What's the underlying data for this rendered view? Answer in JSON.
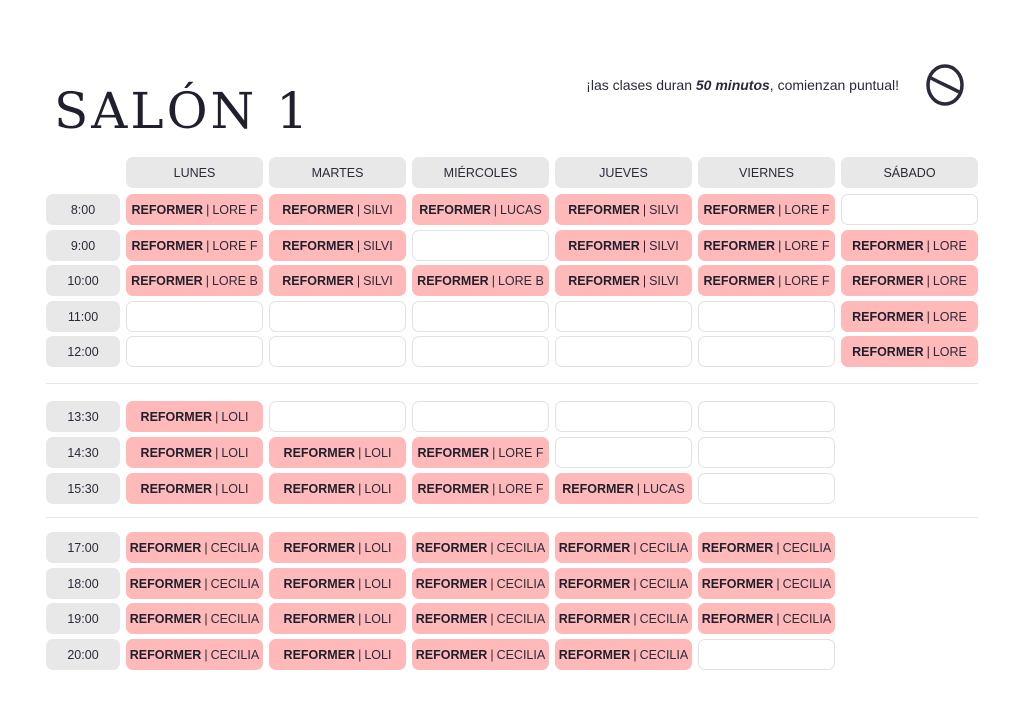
{
  "header": {
    "title": "SALÓN 1",
    "subtitle_pre": "¡las clases duran ",
    "subtitle_bold": "50 minutos",
    "subtitle_post": ", comienzan puntual!",
    "logo_icon": "brand-logo-icon"
  },
  "colors": {
    "class_bg": "#ffb9b9",
    "header_bg": "#e8e8e8",
    "empty_border": "#e2e2e2"
  },
  "days": [
    "LUNES",
    "MARTES",
    "MIÉRCOLES",
    "JUEVES",
    "VIERNES",
    "SÁBADO"
  ],
  "blocks": [
    {
      "rows": [
        {
          "time": "8:00",
          "cells": [
            "REFORMER | LORE F",
            "REFORMER | SILVI",
            "REFORMER | LUCAS",
            "REFORMER | SILVI",
            "REFORMER | LORE F",
            ""
          ]
        },
        {
          "time": "9:00",
          "cells": [
            "REFORMER | LORE F",
            "REFORMER | SILVI",
            "",
            "REFORMER | SILVI",
            "REFORMER | LORE F",
            "REFORMER | LORE"
          ]
        },
        {
          "time": "10:00",
          "cells": [
            "REFORMER | LORE B",
            "REFORMER | SILVI",
            "REFORMER | LORE B",
            "REFORMER | SILVI",
            "REFORMER | LORE F",
            "REFORMER | LORE"
          ]
        },
        {
          "time": "11:00",
          "cells": [
            "",
            "",
            "",
            "",
            "",
            "REFORMER | LORE"
          ]
        },
        {
          "time": "12:00",
          "cells": [
            "",
            "",
            "",
            "",
            "",
            "REFORMER | LORE"
          ]
        }
      ]
    },
    {
      "rows": [
        {
          "time": "13:30",
          "cells": [
            "REFORMER | LOLI",
            "",
            "",
            "",
            ""
          ]
        },
        {
          "time": "14:30",
          "cells": [
            "REFORMER | LOLI",
            "REFORMER | LOLI",
            "REFORMER | LORE F",
            "",
            ""
          ]
        },
        {
          "time": "15:30",
          "cells": [
            "REFORMER | LOLI",
            "REFORMER | LOLI",
            "REFORMER | LORE F",
            "REFORMER | LUCAS",
            ""
          ]
        }
      ]
    },
    {
      "rows": [
        {
          "time": "17:00",
          "cells": [
            "REFORMER | CECILIA",
            "REFORMER | LOLI",
            "REFORMER | CECILIA",
            "REFORMER | CECILIA",
            "REFORMER | CECILIA"
          ]
        },
        {
          "time": "18:00",
          "cells": [
            "REFORMER | CECILIA",
            "REFORMER | LOLI",
            "REFORMER | CECILIA",
            "REFORMER | CECILIA",
            "REFORMER | CECILIA"
          ]
        },
        {
          "time": "19:00",
          "cells": [
            "REFORMER | CECILIA",
            "REFORMER | LOLI",
            "REFORMER | CECILIA",
            "REFORMER | CECILIA",
            "REFORMER | CECILIA"
          ]
        },
        {
          "time": "20:00",
          "cells": [
            "REFORMER | CECILIA",
            "REFORMER | LOLI",
            "REFORMER | CECILIA",
            "REFORMER | CECILIA",
            ""
          ]
        }
      ]
    }
  ]
}
